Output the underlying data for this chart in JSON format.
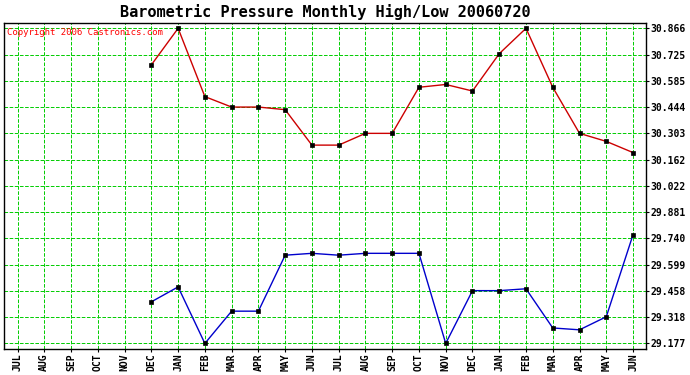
{
  "title": "Barometric Pressure Monthly High/Low 20060720",
  "copyright": "Copyright 2006 Castronics.com",
  "months": [
    "JUL",
    "AUG",
    "SEP",
    "OCT",
    "NOV",
    "DEC",
    "JAN",
    "FEB",
    "MAR",
    "APR",
    "MAY",
    "JUN",
    "JUL",
    "AUG",
    "SEP",
    "OCT",
    "NOV",
    "DEC",
    "JAN",
    "FEB",
    "MAR",
    "APR",
    "MAY",
    "JUN"
  ],
  "high_values": [
    null,
    null,
    null,
    null,
    null,
    30.67,
    30.866,
    30.5,
    30.444,
    30.444,
    30.43,
    30.24,
    30.24,
    30.303,
    30.303,
    30.55,
    30.565,
    30.53,
    30.73,
    30.866,
    30.55,
    30.303,
    30.26,
    30.2
  ],
  "low_values": [
    null,
    null,
    null,
    null,
    null,
    29.4,
    29.48,
    29.177,
    29.35,
    29.35,
    29.65,
    29.66,
    29.65,
    29.66,
    29.66,
    29.66,
    29.177,
    29.46,
    29.46,
    29.47,
    29.26,
    29.25,
    29.32,
    29.76
  ],
  "high_color": "#cc0000",
  "low_color": "#0000cc",
  "bg_color": "#ffffff",
  "grid_color": "#00cc00",
  "ylim_min": 29.177,
  "ylim_max": 30.866,
  "yticks": [
    30.866,
    30.725,
    30.585,
    30.444,
    30.303,
    30.162,
    30.022,
    29.881,
    29.74,
    29.599,
    29.458,
    29.318,
    29.177
  ],
  "title_fontsize": 11,
  "copyright_fontsize": 6.5
}
